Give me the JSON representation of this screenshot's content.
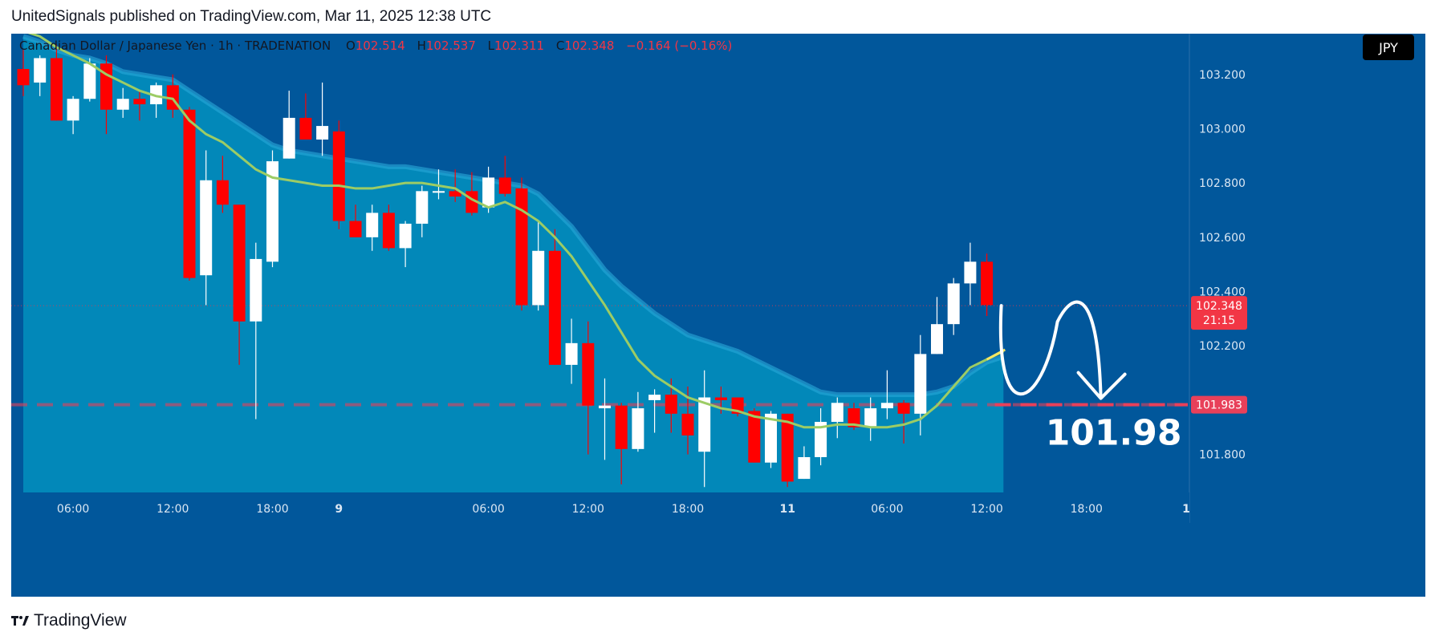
{
  "header": {
    "text": "UnitedSignals published on TradingView.com, Mar 11, 2025 12:38 UTC"
  },
  "legend": {
    "symbol": "Canadian Dollar / Japanese Yen · 1h · TRADENATION",
    "o_label": "O",
    "o": "102.514",
    "h_label": "H",
    "h": "102.537",
    "l_label": "L",
    "l": "102.311",
    "c_label": "C",
    "c": "102.348",
    "change": "−0.164 (−0.16%)"
  },
  "currency_badge": "JPY",
  "price_badge": {
    "price": "102.348",
    "countdown": "21:15"
  },
  "target_badge": "101.983",
  "target_label": "101.98",
  "footer": {
    "brand": "TradingView"
  },
  "colors": {
    "background": "#01579b",
    "area": "#0288b9",
    "bull": "#ffffff",
    "bear": "#ff0000",
    "ma": "#9ccc65",
    "target_line": "#e8405a"
  },
  "chart_data": {
    "type": "candlestick",
    "title": "Canadian Dollar / Japanese Yen · 1h · TRADENATION",
    "ylim": [
      101.66,
      103.35
    ],
    "y_ticks": [
      101.8,
      102.0,
      102.2,
      102.4,
      102.6,
      102.8,
      103.0,
      103.2
    ],
    "y_tick_labels": [
      "101.800",
      "",
      "102.200",
      "102.400",
      "102.600",
      "102.800",
      "103.000",
      "103.200"
    ],
    "x_tick_labels": [
      {
        "index": 3,
        "label": "06:00"
      },
      {
        "index": 9,
        "label": "12:00"
      },
      {
        "index": 15,
        "label": "18:00"
      },
      {
        "index": 19,
        "label": "9"
      },
      {
        "index": 28,
        "label": "06:00"
      },
      {
        "index": 34,
        "label": "12:00"
      },
      {
        "index": 40,
        "label": "18:00"
      },
      {
        "index": 46,
        "label": "11"
      },
      {
        "index": 52,
        "label": "06:00"
      },
      {
        "index": 58,
        "label": "12:00"
      },
      {
        "index": 64,
        "label": "18:00"
      },
      {
        "index": 70,
        "label": "1"
      }
    ],
    "candles": [
      {
        "o": 103.22,
        "h": 103.29,
        "l": 103.12,
        "c": 103.16
      },
      {
        "o": 103.17,
        "h": 103.27,
        "l": 103.12,
        "c": 103.26
      },
      {
        "o": 103.26,
        "h": 103.31,
        "l": 103.03,
        "c": 103.03
      },
      {
        "o": 103.03,
        "h": 103.12,
        "l": 102.98,
        "c": 103.11
      },
      {
        "o": 103.11,
        "h": 103.26,
        "l": 103.1,
        "c": 103.24
      },
      {
        "o": 103.24,
        "h": 103.27,
        "l": 102.98,
        "c": 103.07
      },
      {
        "o": 103.07,
        "h": 103.15,
        "l": 103.04,
        "c": 103.11
      },
      {
        "o": 103.11,
        "h": 103.14,
        "l": 103.03,
        "c": 103.09
      },
      {
        "o": 103.09,
        "h": 103.17,
        "l": 103.04,
        "c": 103.16
      },
      {
        "o": 103.16,
        "h": 103.2,
        "l": 103.04,
        "c": 103.07
      },
      {
        "o": 103.07,
        "h": 103.08,
        "l": 102.44,
        "c": 102.45
      },
      {
        "o": 102.46,
        "h": 102.92,
        "l": 102.35,
        "c": 102.81
      },
      {
        "o": 102.81,
        "h": 102.9,
        "l": 102.69,
        "c": 102.72
      },
      {
        "o": 102.72,
        "h": 102.72,
        "l": 102.13,
        "c": 102.29
      },
      {
        "o": 102.29,
        "h": 102.58,
        "l": 101.93,
        "c": 102.52
      },
      {
        "o": 102.51,
        "h": 102.92,
        "l": 102.49,
        "c": 102.88
      },
      {
        "o": 102.89,
        "h": 103.14,
        "l": 102.89,
        "c": 103.04
      },
      {
        "o": 103.04,
        "h": 103.13,
        "l": 102.96,
        "c": 102.96
      },
      {
        "o": 102.96,
        "h": 103.17,
        "l": 102.9,
        "c": 103.01
      },
      {
        "o": 102.99,
        "h": 103.03,
        "l": 102.63,
        "c": 102.66
      },
      {
        "o": 102.66,
        "h": 102.72,
        "l": 102.6,
        "c": 102.6
      },
      {
        "o": 102.6,
        "h": 102.72,
        "l": 102.55,
        "c": 102.69
      },
      {
        "o": 102.69,
        "h": 102.72,
        "l": 102.55,
        "c": 102.56
      },
      {
        "o": 102.56,
        "h": 102.66,
        "l": 102.49,
        "c": 102.65
      },
      {
        "o": 102.65,
        "h": 102.79,
        "l": 102.6,
        "c": 102.77
      },
      {
        "o": 102.77,
        "h": 102.85,
        "l": 102.74,
        "c": 102.77
      },
      {
        "o": 102.77,
        "h": 102.85,
        "l": 102.73,
        "c": 102.75
      },
      {
        "o": 102.77,
        "h": 102.84,
        "l": 102.68,
        "c": 102.69
      },
      {
        "o": 102.71,
        "h": 102.86,
        "l": 102.69,
        "c": 102.82
      },
      {
        "o": 102.82,
        "h": 102.9,
        "l": 102.75,
        "c": 102.76
      },
      {
        "o": 102.78,
        "h": 102.82,
        "l": 102.33,
        "c": 102.35
      },
      {
        "o": 102.35,
        "h": 102.66,
        "l": 102.33,
        "c": 102.55
      },
      {
        "o": 102.55,
        "h": 102.63,
        "l": 102.13,
        "c": 102.13
      },
      {
        "o": 102.13,
        "h": 102.3,
        "l": 102.06,
        "c": 102.21
      },
      {
        "o": 102.21,
        "h": 102.29,
        "l": 101.8,
        "c": 101.98
      },
      {
        "o": 101.97,
        "h": 102.08,
        "l": 101.78,
        "c": 101.98
      },
      {
        "o": 101.98,
        "h": 101.99,
        "l": 101.69,
        "c": 101.82
      },
      {
        "o": 101.82,
        "h": 102.03,
        "l": 101.81,
        "c": 101.97
      },
      {
        "o": 102.0,
        "h": 102.04,
        "l": 101.88,
        "c": 102.02
      },
      {
        "o": 102.02,
        "h": 102.08,
        "l": 101.88,
        "c": 101.95
      },
      {
        "o": 101.95,
        "h": 102.05,
        "l": 101.8,
        "c": 101.87
      },
      {
        "o": 101.81,
        "h": 102.11,
        "l": 101.68,
        "c": 102.01
      },
      {
        "o": 102.01,
        "h": 102.05,
        "l": 101.95,
        "c": 102.0
      },
      {
        "o": 102.01,
        "h": 102.01,
        "l": 101.94,
        "c": 101.95
      },
      {
        "o": 101.96,
        "h": 101.97,
        "l": 101.77,
        "c": 101.77
      },
      {
        "o": 101.77,
        "h": 101.96,
        "l": 101.75,
        "c": 101.95
      },
      {
        "o": 101.95,
        "h": 101.95,
        "l": 101.68,
        "c": 101.7
      },
      {
        "o": 101.71,
        "h": 101.83,
        "l": 101.71,
        "c": 101.79
      },
      {
        "o": 101.79,
        "h": 101.97,
        "l": 101.76,
        "c": 101.92
      },
      {
        "o": 101.92,
        "h": 102.01,
        "l": 101.86,
        "c": 101.99
      },
      {
        "o": 101.97,
        "h": 101.99,
        "l": 101.89,
        "c": 101.9
      },
      {
        "o": 101.9,
        "h": 102.01,
        "l": 101.85,
        "c": 101.97
      },
      {
        "o": 101.97,
        "h": 102.11,
        "l": 101.93,
        "c": 101.99
      },
      {
        "o": 101.99,
        "h": 102.0,
        "l": 101.84,
        "c": 101.95
      },
      {
        "o": 101.95,
        "h": 102.24,
        "l": 101.87,
        "c": 102.17
      },
      {
        "o": 102.17,
        "h": 102.38,
        "l": 102.17,
        "c": 102.28
      },
      {
        "o": 102.28,
        "h": 102.45,
        "l": 102.24,
        "c": 102.43
      },
      {
        "o": 102.43,
        "h": 102.58,
        "l": 102.35,
        "c": 102.51
      },
      {
        "o": 102.51,
        "h": 102.54,
        "l": 102.31,
        "c": 102.35
      }
    ],
    "ma_line": [
      103.36,
      103.34,
      103.3,
      103.27,
      103.24,
      103.2,
      103.17,
      103.14,
      103.12,
      103.11,
      103.03,
      102.98,
      102.95,
      102.9,
      102.85,
      102.82,
      102.81,
      102.8,
      102.79,
      102.79,
      102.78,
      102.78,
      102.79,
      102.8,
      102.8,
      102.79,
      102.78,
      102.74,
      102.71,
      102.73,
      102.7,
      102.66,
      102.6,
      102.53,
      102.44,
      102.35,
      102.25,
      102.15,
      102.09,
      102.05,
      102.01,
      101.99,
      101.97,
      101.96,
      101.94,
      101.93,
      101.92,
      101.9,
      101.9,
      101.91,
      101.91,
      101.9,
      101.9,
      101.91,
      101.93,
      101.98,
      102.05,
      102.12,
      102.15,
      102.18
    ],
    "area_upper": [
      103.34,
      103.32,
      103.29,
      103.27,
      103.26,
      103.24,
      103.21,
      103.2,
      103.19,
      103.18,
      103.14,
      103.1,
      103.06,
      103.02,
      102.98,
      102.94,
      102.92,
      102.91,
      102.9,
      102.89,
      102.88,
      102.87,
      102.86,
      102.86,
      102.85,
      102.84,
      102.83,
      102.82,
      102.81,
      102.8,
      102.79,
      102.76,
      102.7,
      102.64,
      102.56,
      102.48,
      102.42,
      102.37,
      102.32,
      102.28,
      102.24,
      102.22,
      102.2,
      102.18,
      102.15,
      102.12,
      102.09,
      102.06,
      102.03,
      102.02,
      102.02,
      102.02,
      102.02,
      102.02,
      102.02,
      102.03,
      102.05,
      102.1,
      102.14,
      102.16
    ],
    "target_price": 101.983,
    "current_price": 102.348,
    "projection": "down",
    "target_annotation": "101.98",
    "currency": "JPY"
  }
}
